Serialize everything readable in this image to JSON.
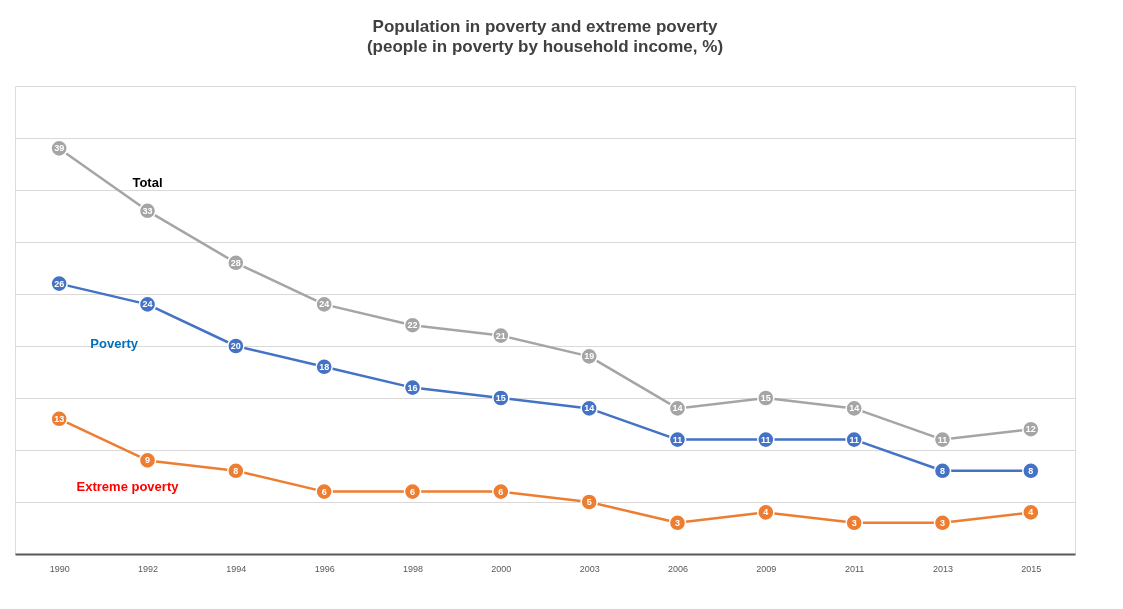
{
  "chart_data": {
    "type": "line",
    "title": "Population in poverty and extreme poverty",
    "subtitle": "(people in poverty by household income, %)",
    "categories": [
      "1990",
      "1992",
      "1994",
      "1996",
      "1998",
      "2000",
      "2003",
      "2006",
      "2009",
      "2011",
      "2013",
      "2015"
    ],
    "series": [
      {
        "name": "Total",
        "color": "#a5a5a5",
        "values": [
          39,
          33,
          28,
          24,
          22,
          21,
          19,
          14,
          15,
          14,
          11,
          12
        ]
      },
      {
        "name": "Poverty",
        "color": "#4472c4",
        "values": [
          26,
          24,
          20,
          18,
          16,
          15,
          14,
          11,
          11,
          11,
          8,
          8
        ]
      },
      {
        "name": "Extreme poverty",
        "color": "#ed7d31",
        "values": [
          13,
          9,
          8,
          6,
          6,
          6,
          5,
          3,
          4,
          3,
          3,
          4
        ]
      }
    ],
    "ylim": [
      0,
      45
    ],
    "yticks": [
      {
        "value": 0,
        "label": null
      },
      {
        "value": 5,
        "label": null
      },
      {
        "value": 10,
        "label": null
      },
      {
        "value": 15,
        "label": null
      },
      {
        "value": 20,
        "label": null
      },
      {
        "value": 25,
        "label": null
      },
      {
        "value": 30,
        "label": null
      },
      {
        "value": 35,
        "label": null
      },
      {
        "value": 40,
        "label": null
      },
      {
        "value": 45,
        "label": null
      }
    ],
    "tick_labels": "x",
    "grid": "y",
    "marker": "circle",
    "line_style": "solid",
    "data_labels": true
  }
}
